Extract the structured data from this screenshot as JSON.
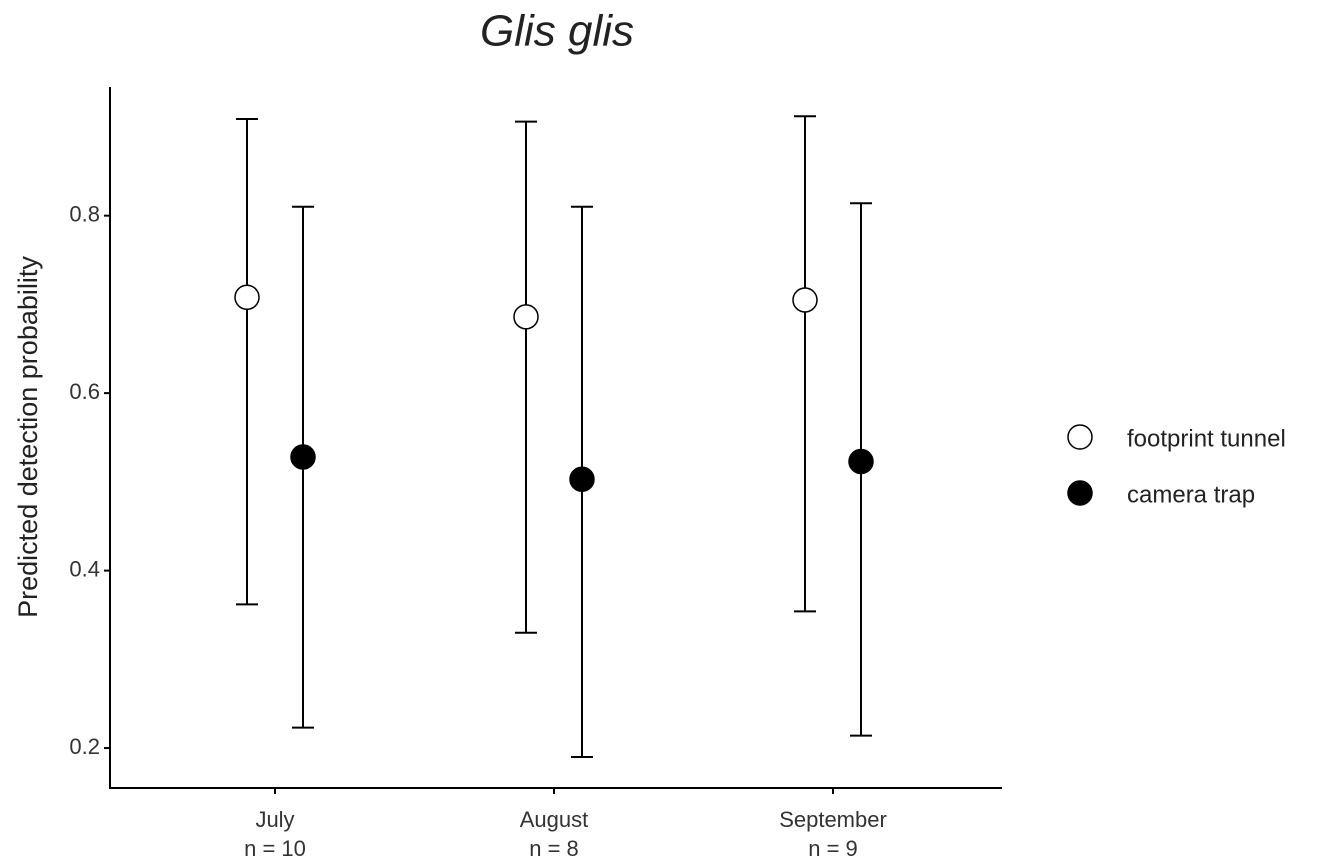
{
  "chart_data": {
    "type": "pointrange",
    "title": "Glis glis",
    "y_label": "Predicted detection probability",
    "categories": [
      "July",
      "August",
      "September"
    ],
    "category_sublabels": [
      "n = 10",
      "n = 8",
      "n = 9"
    ],
    "series": [
      {
        "name": "footprint tunnel",
        "color": "#ffffff",
        "values": [
          0.708,
          0.686,
          0.705
        ],
        "lower": [
          0.362,
          0.33,
          0.354
        ],
        "upper": [
          0.909,
          0.906,
          0.912
        ]
      },
      {
        "name": "camera trap",
        "color": "#000000",
        "values": [
          0.528,
          0.503,
          0.523
        ],
        "lower": [
          0.223,
          0.19,
          0.214
        ],
        "upper": [
          0.81,
          0.81,
          0.814
        ]
      }
    ],
    "ylim": [
      0.155,
      0.945
    ],
    "yticks": [
      0.2,
      0.4,
      0.6,
      0.8
    ],
    "grid": false,
    "legend": "right"
  }
}
